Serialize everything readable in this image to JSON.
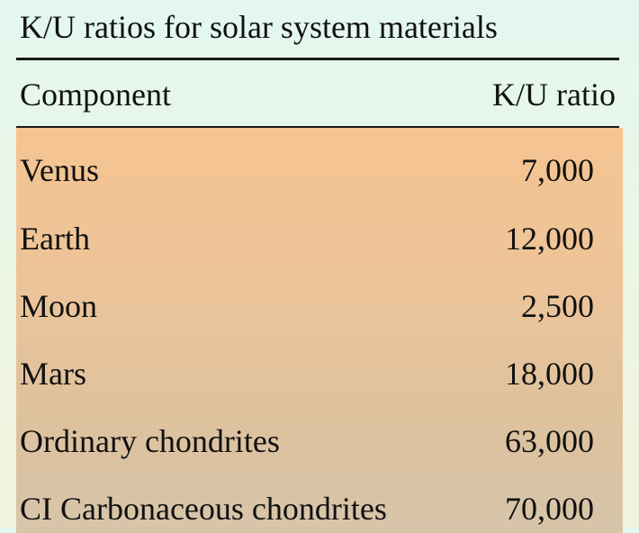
{
  "title": "K/U ratios for solar system materials",
  "columns": {
    "component": "Component",
    "ratio": "K/U ratio"
  },
  "rows": [
    {
      "component": "Venus",
      "ratio": "7,000"
    },
    {
      "component": "Earth",
      "ratio": "12,000"
    },
    {
      "component": "Moon",
      "ratio": "2,500"
    },
    {
      "component": "Mars",
      "ratio": "18,000"
    },
    {
      "component": "Ordinary chondrites",
      "ratio": "63,000"
    },
    {
      "component": "CI Carbonaceous chondrites",
      "ratio": "70,000"
    }
  ],
  "colors": {
    "background": "#e3f7ef",
    "body_highlight": "#f6c490",
    "rule": "#1a1a1a"
  }
}
